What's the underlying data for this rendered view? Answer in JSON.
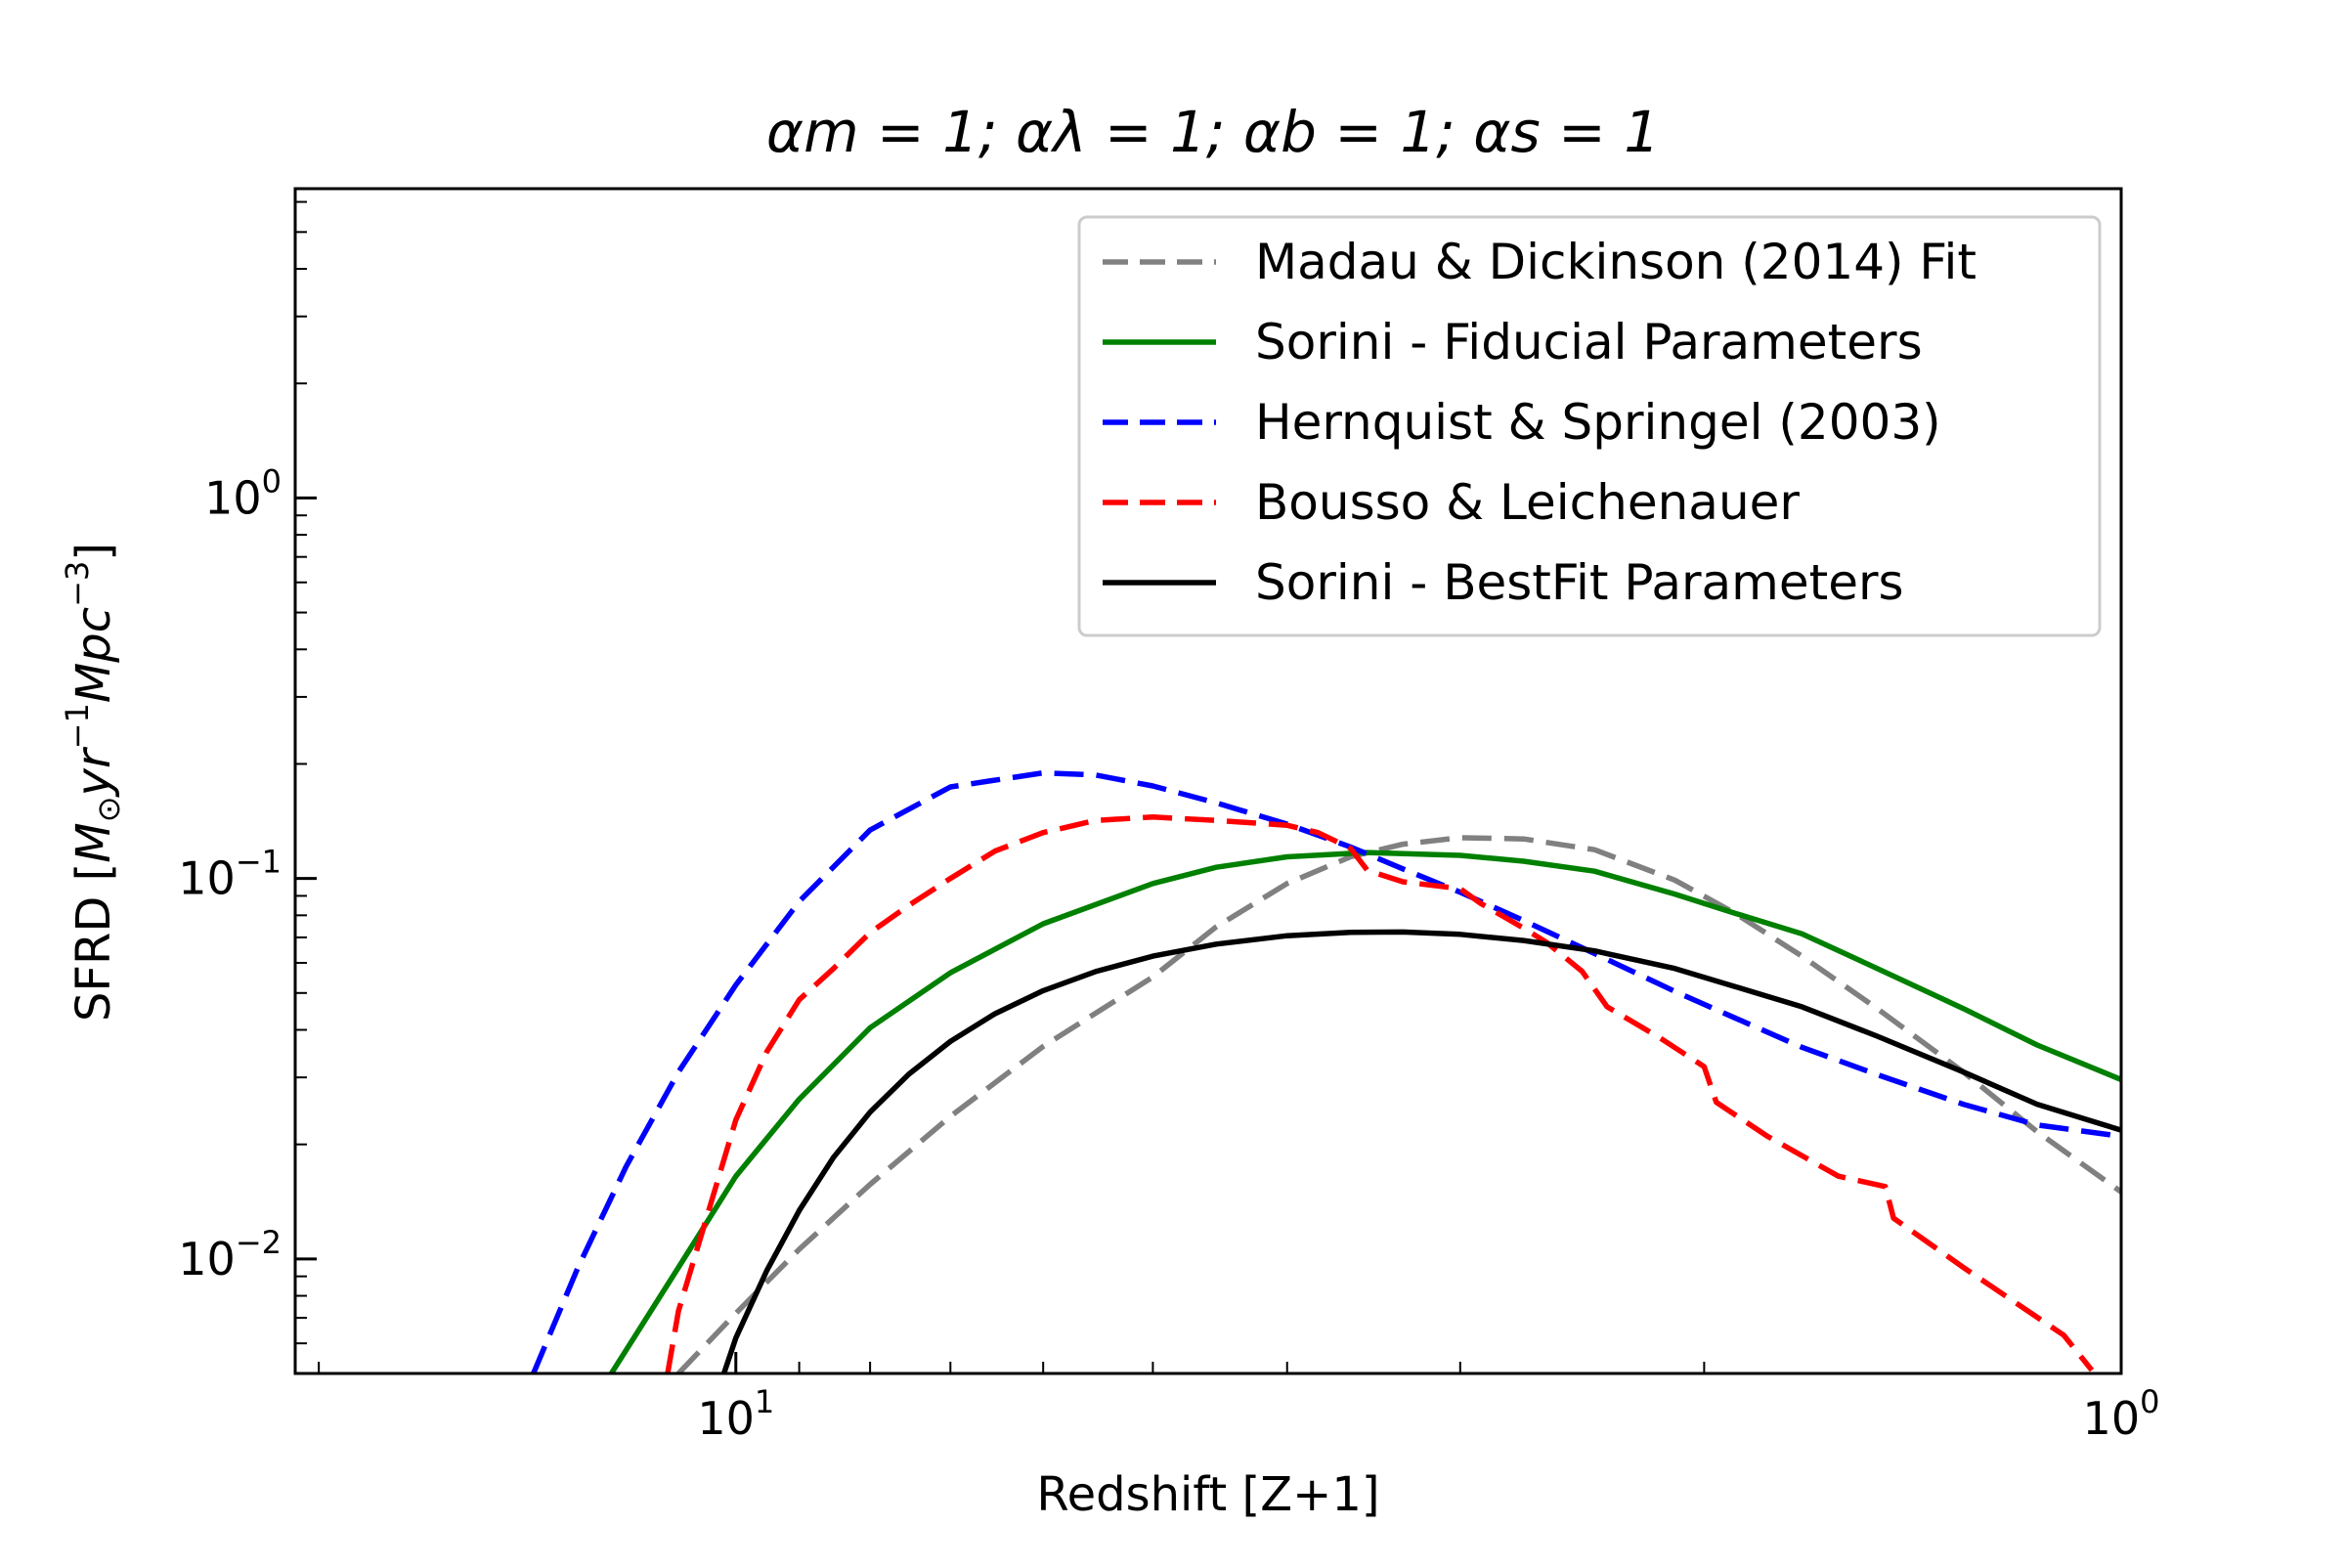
{
  "chart_data": {
    "type": "line",
    "title": "αm = 1; αλ = 1; αb = 1; αs = 1",
    "xlabel": "Redshift [Z+1]",
    "ylabel": "SFRD [M⊙yr⁻¹Mpc⁻³]",
    "xscale": "log",
    "yscale": "log",
    "x_inverted": true,
    "xlim": [
      20.8,
      1.0
    ],
    "ylim": [
      0.005,
      6.5
    ],
    "x_ticks": [
      {
        "value": 10,
        "base": "10",
        "exp": "1"
      },
      {
        "value": 1,
        "base": "10",
        "exp": "0"
      }
    ],
    "y_ticks": [
      {
        "value": 1,
        "base": "10",
        "exp": "0"
      },
      {
        "value": 0.1,
        "base": "10",
        "exp": "−1"
      },
      {
        "value": 0.01,
        "base": "10",
        "exp": "−2"
      }
    ],
    "grid": false,
    "legend_position": "top-right",
    "series": [
      {
        "name": "Madau & Dickinson (2014) Fit",
        "color": "#808080",
        "dash": "dashed",
        "points": [
          [
            11.0,
            0.005
          ],
          [
            10.0,
            0.0072
          ],
          [
            9.0,
            0.0106
          ],
          [
            8.0,
            0.0157
          ],
          [
            7.0,
            0.0237
          ],
          [
            6.0,
            0.0362
          ],
          [
            5.0,
            0.0551
          ],
          [
            4.5,
            0.0746
          ],
          [
            4.0,
            0.097
          ],
          [
            3.6,
            0.114
          ],
          [
            3.3,
            0.123
          ],
          [
            3.0,
            0.128
          ],
          [
            2.7,
            0.127
          ],
          [
            2.4,
            0.119
          ],
          [
            2.1,
            0.099
          ],
          [
            1.9,
            0.081
          ],
          [
            1.7,
            0.0625
          ],
          [
            1.5,
            0.0455
          ],
          [
            1.3,
            0.031
          ],
          [
            1.15,
            0.0216
          ],
          [
            1.0,
            0.015
          ]
        ]
      },
      {
        "name": "Sorini - Fiducial Parameters",
        "color": "#008000",
        "dash": "solid",
        "points": [
          [
            12.3,
            0.005
          ],
          [
            11.0,
            0.0095
          ],
          [
            10.0,
            0.0165
          ],
          [
            9.0,
            0.0263
          ],
          [
            8.0,
            0.0405
          ],
          [
            7.0,
            0.0565
          ],
          [
            6.0,
            0.076
          ],
          [
            5.0,
            0.097
          ],
          [
            4.5,
            0.107
          ],
          [
            4.0,
            0.114
          ],
          [
            3.5,
            0.117
          ],
          [
            3.0,
            0.115
          ],
          [
            2.7,
            0.111
          ],
          [
            2.4,
            0.1045
          ],
          [
            2.1,
            0.091
          ],
          [
            1.9,
            0.081
          ],
          [
            1.7,
            0.0715
          ],
          [
            1.5,
            0.058
          ],
          [
            1.3,
            0.0455
          ],
          [
            1.15,
            0.0365
          ],
          [
            1.0,
            0.0296
          ]
        ]
      },
      {
        "name": "Hernquist & Springel (2003)",
        "color": "#0000ff",
        "dash": "dashed",
        "points": [
          [
            14.0,
            0.005
          ],
          [
            13.0,
            0.0095
          ],
          [
            12.0,
            0.0175
          ],
          [
            11.0,
            0.031
          ],
          [
            10.0,
            0.0525
          ],
          [
            9.0,
            0.087
          ],
          [
            8.0,
            0.134
          ],
          [
            7.0,
            0.174
          ],
          [
            6.0,
            0.1895
          ],
          [
            5.5,
            0.187
          ],
          [
            5.0,
            0.175
          ],
          [
            4.5,
            0.158
          ],
          [
            4.0,
            0.139
          ],
          [
            3.6,
            0.121
          ],
          [
            3.3,
            0.106
          ],
          [
            3.0,
            0.092
          ],
          [
            2.7,
            0.0775
          ],
          [
            2.4,
            0.0635
          ],
          [
            2.1,
            0.0505
          ],
          [
            1.9,
            0.043
          ],
          [
            1.7,
            0.036
          ],
          [
            1.5,
            0.0305
          ],
          [
            1.3,
            0.0255
          ],
          [
            1.15,
            0.0225
          ],
          [
            1.0,
            0.021
          ]
        ]
      },
      {
        "name": "Bousso & Leichenauer",
        "color": "#ff0000",
        "dash": "dashed",
        "points": [
          [
            11.2,
            0.005
          ],
          [
            11.0,
            0.0073
          ],
          [
            10.5,
            0.0128
          ],
          [
            10.0,
            0.0232
          ],
          [
            9.5,
            0.035
          ],
          [
            9.0,
            0.048
          ],
          [
            8.5,
            0.058
          ],
          [
            8.0,
            0.072
          ],
          [
            7.5,
            0.085
          ],
          [
            7.0,
            0.1
          ],
          [
            6.5,
            0.118
          ],
          [
            6.0,
            0.132
          ],
          [
            5.5,
            0.142
          ],
          [
            5.0,
            0.145
          ],
          [
            4.5,
            0.142
          ],
          [
            4.0,
            0.138
          ],
          [
            3.8,
            0.132
          ],
          [
            3.6,
            0.12
          ],
          [
            3.5,
            0.105
          ],
          [
            3.3,
            0.098
          ],
          [
            3.0,
            0.094
          ],
          [
            2.9,
            0.086
          ],
          [
            2.7,
            0.074
          ],
          [
            2.6,
            0.068
          ],
          [
            2.45,
            0.057
          ],
          [
            2.35,
            0.046
          ],
          [
            2.15,
            0.038
          ],
          [
            2.0,
            0.032
          ],
          [
            1.96,
            0.0258
          ],
          [
            1.8,
            0.021
          ],
          [
            1.6,
            0.0165
          ],
          [
            1.48,
            0.0155
          ],
          [
            1.46,
            0.0128
          ],
          [
            1.3,
            0.0095
          ],
          [
            1.1,
            0.0063
          ],
          [
            1.05,
            0.0051
          ]
        ]
      },
      {
        "name": "Sorini - BestFit Parameters",
        "color": "#000000",
        "dash": "solid",
        "points": [
          [
            10.2,
            0.005
          ],
          [
            10.0,
            0.0062
          ],
          [
            9.5,
            0.0093
          ],
          [
            9.0,
            0.0134
          ],
          [
            8.5,
            0.0185
          ],
          [
            8.0,
            0.0243
          ],
          [
            7.5,
            0.0306
          ],
          [
            7.0,
            0.0373
          ],
          [
            6.5,
            0.0441
          ],
          [
            6.0,
            0.0507
          ],
          [
            5.5,
            0.0569
          ],
          [
            5.0,
            0.0625
          ],
          [
            4.5,
            0.0672
          ],
          [
            4.0,
            0.0707
          ],
          [
            3.6,
            0.0722
          ],
          [
            3.3,
            0.0723
          ],
          [
            3.0,
            0.0713
          ],
          [
            2.7,
            0.0687
          ],
          [
            2.4,
            0.0645
          ],
          [
            2.1,
            0.058
          ],
          [
            1.9,
            0.052
          ],
          [
            1.7,
            0.046
          ],
          [
            1.5,
            0.0385
          ],
          [
            1.3,
            0.031
          ],
          [
            1.15,
            0.0255
          ],
          [
            1.0,
            0.0218
          ]
        ]
      }
    ]
  }
}
